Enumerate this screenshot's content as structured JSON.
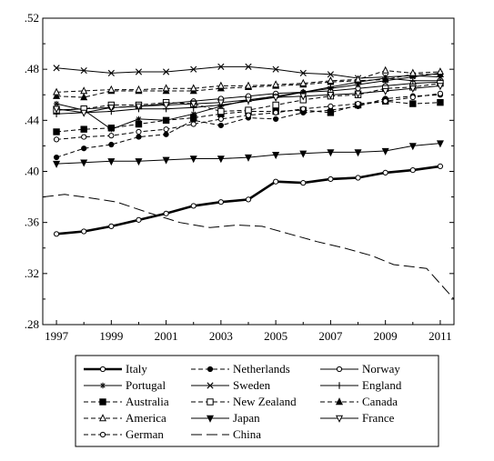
{
  "chart_data": {
    "type": "line",
    "title": "",
    "xlabel": "",
    "ylabel": "",
    "xlim": [
      1996.5,
      2011.5
    ],
    "ylim": [
      0.28,
      0.52
    ],
    "x_ticks": [
      1997,
      1999,
      2001,
      2003,
      2005,
      2007,
      2009,
      2011
    ],
    "x_tick_labels": [
      "1997",
      "1999",
      "2001",
      "2003",
      "2005",
      "2007",
      "2009",
      "2011"
    ],
    "y_ticks": [
      0.28,
      0.32,
      0.36,
      0.4,
      0.44,
      0.48,
      0.52
    ],
    "y_tick_labels": [
      ".28",
      ".32",
      ".36",
      ".40",
      ".44",
      ".48",
      ".52"
    ],
    "grid": false,
    "legend_position": "bottom",
    "legend_columns": 3,
    "x": [
      1997,
      1998,
      1999,
      2000,
      2001,
      2002,
      2003,
      2004,
      2005,
      2006,
      2007,
      2008,
      2009,
      2010,
      2011
    ],
    "series": [
      {
        "name": "Italy",
        "dash": "",
        "width": 2.6,
        "marker": "circle-open",
        "values": [
          0.351,
          0.353,
          0.357,
          0.362,
          0.367,
          0.373,
          0.376,
          0.378,
          0.392,
          0.391,
          0.394,
          0.395,
          0.399,
          0.401,
          0.404
        ]
      },
      {
        "name": "Netherlands",
        "dash": "5,3",
        "width": 1,
        "marker": "circle-filled",
        "values": [
          0.411,
          0.418,
          0.421,
          0.427,
          0.429,
          0.44,
          0.436,
          0.442,
          0.441,
          0.446,
          0.448,
          0.451,
          0.457,
          0.459,
          0.46
        ]
      },
      {
        "name": "Norway",
        "dash": "",
        "width": 1,
        "marker": "circle-open",
        "values": [
          0.448,
          0.449,
          0.45,
          0.451,
          0.453,
          0.455,
          0.457,
          0.459,
          0.461,
          0.462,
          0.463,
          0.465,
          0.467,
          0.469,
          0.47
        ]
      },
      {
        "name": "Portugal",
        "dash": "",
        "width": 1,
        "marker": "asterisk",
        "values": [
          0.453,
          0.448,
          0.433,
          0.441,
          0.44,
          0.445,
          0.451,
          0.456,
          0.459,
          0.462,
          0.465,
          0.468,
          0.471,
          0.474,
          0.477
        ]
      },
      {
        "name": "Sweden",
        "dash": "",
        "width": 1,
        "marker": "x",
        "values": [
          0.481,
          0.479,
          0.477,
          0.478,
          0.478,
          0.48,
          0.482,
          0.482,
          0.48,
          0.477,
          0.476,
          0.473,
          0.474,
          0.475,
          0.474
        ]
      },
      {
        "name": "England",
        "dash": "",
        "width": 1,
        "marker": "plus",
        "values": [
          0.445,
          0.446,
          0.447,
          0.449,
          0.449,
          0.45,
          0.452,
          0.455,
          0.458,
          0.462,
          0.466,
          0.47,
          0.473,
          0.471,
          0.471
        ]
      },
      {
        "name": "Australia",
        "dash": "5,3",
        "width": 1,
        "marker": "square-filled",
        "values": [
          0.431,
          0.433,
          0.434,
          0.437,
          0.44,
          0.442,
          0.445,
          0.447,
          0.447,
          0.448,
          0.446,
          0.452,
          0.455,
          0.453,
          0.454
        ]
      },
      {
        "name": "New Zealand",
        "dash": "5,3",
        "width": 1,
        "marker": "square-open",
        "values": [
          0.448,
          0.449,
          0.452,
          0.452,
          0.454,
          0.453,
          0.447,
          0.448,
          0.452,
          0.456,
          0.459,
          0.46,
          0.465,
          0.466,
          0.469
        ]
      },
      {
        "name": "Canada",
        "dash": "5,3",
        "width": 1,
        "marker": "triangle-filled",
        "values": [
          0.459,
          0.458,
          0.463,
          0.463,
          0.463,
          0.463,
          0.465,
          0.466,
          0.467,
          0.468,
          0.47,
          0.471,
          0.472,
          0.476,
          0.476
        ]
      },
      {
        "name": "America",
        "dash": "5,3",
        "width": 1,
        "marker": "triangle-open",
        "values": [
          0.462,
          0.463,
          0.464,
          0.464,
          0.465,
          0.465,
          0.467,
          0.467,
          0.468,
          0.469,
          0.471,
          0.472,
          0.479,
          0.477,
          0.478
        ]
      },
      {
        "name": "Japan",
        "dash": "",
        "width": 1,
        "marker": "triangle-down-filled",
        "values": [
          0.406,
          0.407,
          0.408,
          0.408,
          0.409,
          0.41,
          0.41,
          0.411,
          0.413,
          0.414,
          0.415,
          0.415,
          0.416,
          0.42,
          0.422
        ]
      },
      {
        "name": "France",
        "dash": "",
        "width": 1,
        "marker": "triangle-down-open",
        "values": [
          0.449,
          0.446,
          0.45,
          0.451,
          0.452,
          0.453,
          0.454,
          0.456,
          0.458,
          0.459,
          0.46,
          0.461,
          0.463,
          0.465,
          0.467
        ]
      },
      {
        "name": "German",
        "dash": "5,3",
        "width": 1,
        "marker": "circle-open",
        "values": [
          0.425,
          0.427,
          0.428,
          0.431,
          0.433,
          0.437,
          0.441,
          0.444,
          0.446,
          0.449,
          0.451,
          0.453,
          0.455,
          0.458,
          0.461
        ]
      },
      {
        "name": "China",
        "dash": "12,5",
        "width": 1,
        "marker": "none",
        "values": [
          0.38,
          0.382,
          0.379,
          0.376,
          0.368,
          0.36,
          0.356,
          0.358,
          0.357,
          0.351,
          0.345,
          0.34,
          0.334,
          0.327,
          0.324,
          0.3
        ],
        "x": [
          1996.5,
          1997.3,
          1998.3,
          1999.2,
          2000.3,
          2001.5,
          2002.6,
          2003.6,
          2004.5,
          2005.5,
          2006.5,
          2007.5,
          2008.5,
          2009.3,
          2010.5,
          2011.5
        ]
      }
    ]
  }
}
